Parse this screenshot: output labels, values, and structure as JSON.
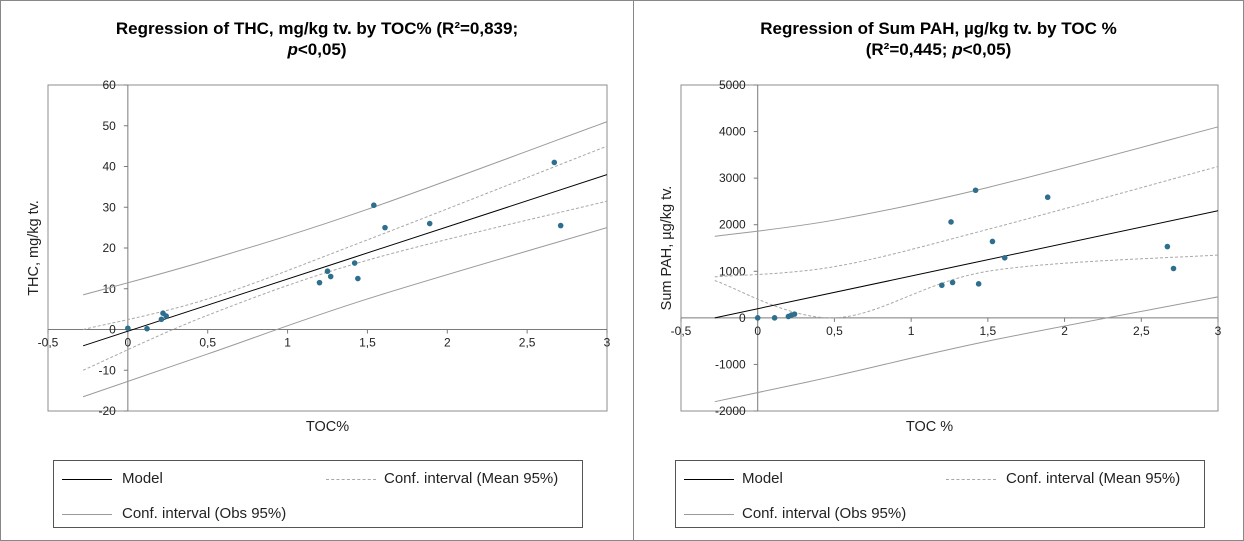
{
  "chart_data": [
    {
      "type": "scatter",
      "title_line1": "Regression of THC, mg/kg tv. by TOC% (R²=0,839;",
      "title_line2_italic": "p",
      "title_line2_rest": "<0,05)",
      "xlabel": "TOC%",
      "ylabel": "THC,  mg/kg tv.",
      "xlim": [
        -0.5,
        3
      ],
      "ylim": [
        -20,
        60
      ],
      "xticks": [
        -0.5,
        0,
        0.5,
        1,
        1.5,
        2,
        2.5,
        3
      ],
      "xtick_labels": [
        "-0,5",
        "0",
        "0,5",
        "1",
        "1,5",
        "2",
        "2,5",
        "3"
      ],
      "yticks": [
        -20,
        -10,
        0,
        10,
        20,
        30,
        40,
        50,
        60
      ],
      "ytick_labels": [
        "-20",
        "-10",
        "0",
        "10",
        "20",
        "30",
        "40",
        "50",
        "60"
      ],
      "points": [
        {
          "x": 0.0,
          "y": 0.3
        },
        {
          "x": 0.12,
          "y": 0.2
        },
        {
          "x": 0.21,
          "y": 2.5
        },
        {
          "x": 0.22,
          "y": 4.0
        },
        {
          "x": 0.24,
          "y": 3.3
        },
        {
          "x": 1.2,
          "y": 11.5
        },
        {
          "x": 1.25,
          "y": 14.3
        },
        {
          "x": 1.27,
          "y": 13.0
        },
        {
          "x": 1.42,
          "y": 16.3
        },
        {
          "x": 1.44,
          "y": 12.5
        },
        {
          "x": 1.54,
          "y": 30.5
        },
        {
          "x": 1.61,
          "y": 25.0
        },
        {
          "x": 1.89,
          "y": 26.0
        },
        {
          "x": 2.67,
          "y": 41.0
        },
        {
          "x": 2.71,
          "y": 25.5
        }
      ],
      "model": [
        [
          -0.28,
          -4.0
        ],
        [
          3.0,
          38.0
        ]
      ],
      "conf_mean_upper": [
        [
          -0.28,
          0.0
        ],
        [
          0.5,
          7.5
        ],
        [
          1.5,
          22.0
        ],
        [
          3.0,
          45.0
        ]
      ],
      "conf_mean_lower": [
        [
          -0.28,
          -10.0
        ],
        [
          0.5,
          3.5
        ],
        [
          1.5,
          17.0
        ],
        [
          3.0,
          31.5
        ]
      ],
      "conf_obs_upper": [
        [
          -0.28,
          8.5
        ],
        [
          0.5,
          17.0
        ],
        [
          1.5,
          29.5
        ],
        [
          3.0,
          51.0
        ]
      ],
      "conf_obs_lower": [
        [
          -0.28,
          -16.5
        ],
        [
          0.5,
          -6.0
        ],
        [
          1.5,
          7.5
        ],
        [
          3.0,
          25.0
        ]
      ],
      "legend": {
        "model": "Model",
        "conf_mean": "Conf. interval (Mean 95%)",
        "conf_obs": "Conf. interval (Obs 95%)"
      }
    },
    {
      "type": "scatter",
      "title_line1": "Regression of Sum PAH, µg/kg tv. by TOC %",
      "title_line2_prefix": "(R²=0,445; ",
      "title_line2_italic": "p",
      "title_line2_rest": "<0,05)",
      "xlabel": "TOC  %",
      "ylabel": "Sum PAH,  µg/kg tv.",
      "xlim": [
        -0.5,
        3
      ],
      "ylim": [
        -2000,
        5000
      ],
      "xticks": [
        -0.5,
        0,
        0.5,
        1,
        1.5,
        2,
        2.5,
        3
      ],
      "xtick_labels": [
        "-0,5",
        "0",
        "0,5",
        "1",
        "1,5",
        "2",
        "2,5",
        "3"
      ],
      "yticks": [
        -2000,
        -1000,
        0,
        1000,
        2000,
        3000,
        4000,
        5000
      ],
      "ytick_labels": [
        "-2000",
        "-1000",
        "0",
        "1000",
        "2000",
        "3000",
        "4000",
        "5000"
      ],
      "points": [
        {
          "x": 0.0,
          "y": 0
        },
        {
          "x": 0.11,
          "y": 0
        },
        {
          "x": 0.2,
          "y": 30
        },
        {
          "x": 0.22,
          "y": 60
        },
        {
          "x": 0.24,
          "y": 80
        },
        {
          "x": 1.2,
          "y": 700
        },
        {
          "x": 1.26,
          "y": 2060
        },
        {
          "x": 1.27,
          "y": 760
        },
        {
          "x": 1.42,
          "y": 2740
        },
        {
          "x": 1.44,
          "y": 730
        },
        {
          "x": 1.53,
          "y": 1640
        },
        {
          "x": 1.61,
          "y": 1290
        },
        {
          "x": 1.89,
          "y": 2590
        },
        {
          "x": 2.67,
          "y": 1530
        },
        {
          "x": 2.71,
          "y": 1060
        }
      ],
      "model": [
        [
          -0.28,
          0
        ],
        [
          3.0,
          2300
        ]
      ],
      "conf_mean_upper": [
        [
          -0.28,
          880
        ],
        [
          0.5,
          1100
        ],
        [
          1.5,
          1900
        ],
        [
          3.0,
          3250
        ]
      ],
      "conf_mean_lower": [
        [
          -0.28,
          800
        ],
        [
          0.5,
          0
        ],
        [
          1.5,
          1000
        ],
        [
          3.0,
          1350
        ]
      ],
      "conf_obs_upper": [
        [
          -0.28,
          1750
        ],
        [
          0.5,
          2100
        ],
        [
          1.5,
          2800
        ],
        [
          3.0,
          4100
        ]
      ],
      "conf_obs_lower": [
        [
          -0.28,
          -1800
        ],
        [
          0.5,
          -1250
        ],
        [
          1.5,
          -500
        ],
        [
          3.0,
          450
        ]
      ],
      "legend": {
        "model": "Model",
        "conf_mean": "Conf. interval (Mean 95%)",
        "conf_obs": "Conf. interval (Obs 95%)"
      }
    }
  ],
  "colors": {
    "point": "#2e6f8e",
    "model": "#000000",
    "conf_mean": "#a8a8a8",
    "conf_obs": "#9a9a9a",
    "plot_border": "#8c8c8c"
  }
}
